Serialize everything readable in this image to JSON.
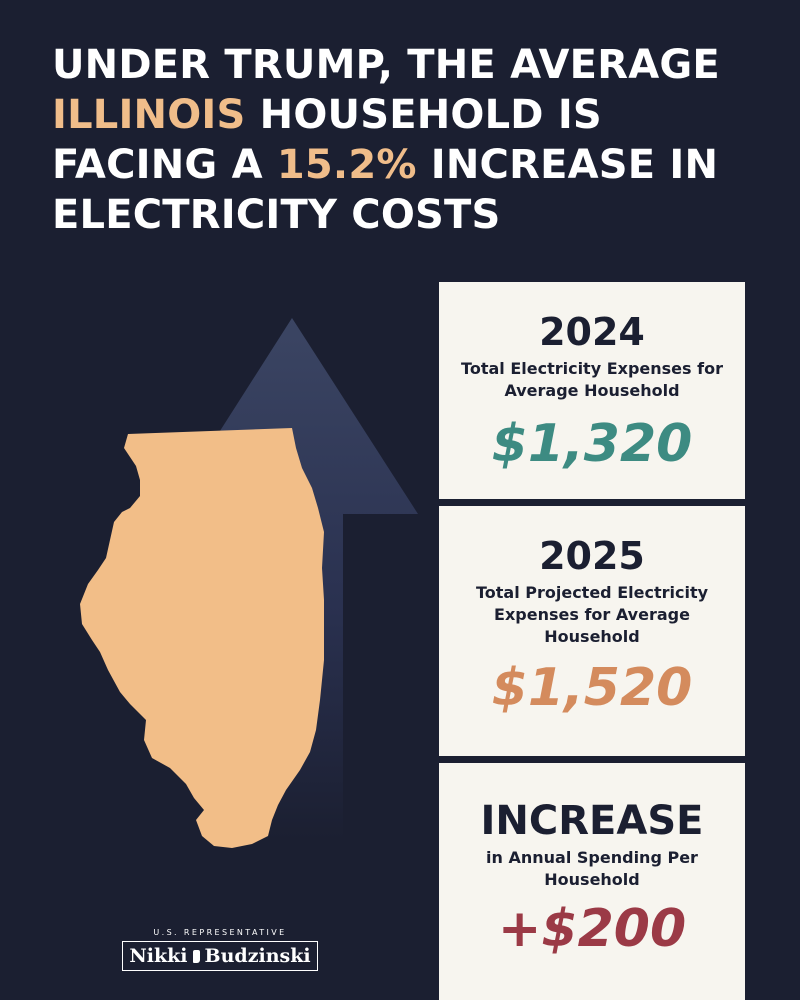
{
  "headline": {
    "line1": "UNDER TRUMP, THE AVERAGE",
    "state": "ILLINOIS",
    "line2_rest": " HOUSEHOLD IS",
    "line3_start": "FACING A ",
    "percent": "15.2%",
    "line3_rest": " INCREASE IN",
    "line4": "ELECTRICITY COSTS"
  },
  "cards": [
    {
      "heading": "2024",
      "description": "Total Electricity Expenses for Average Household",
      "amount": "$1,320"
    },
    {
      "heading": "2025",
      "description": "Total Projected Electricity Expenses for Average Household",
      "amount": "$1,520"
    },
    {
      "heading": "INCREASE",
      "description": "in Annual Spending Per Household",
      "amount": "+$200"
    }
  ],
  "logo": {
    "title": "U.S. REPRESENTATIVE",
    "first_name": "Nikki",
    "last_name": "Budzinski"
  },
  "colors": {
    "background": "#1b1f31",
    "highlight": "#f0bd8a",
    "state_fill": "#f2be88",
    "amount_2024": "#3d8b82",
    "amount_2025": "#d48b5d",
    "amount_increase": "#9b3a46",
    "card_bg": "#f7f5ef"
  },
  "icons": [
    "up-arrow-icon",
    "illinois-map-icon",
    "illinois-logo-icon"
  ]
}
